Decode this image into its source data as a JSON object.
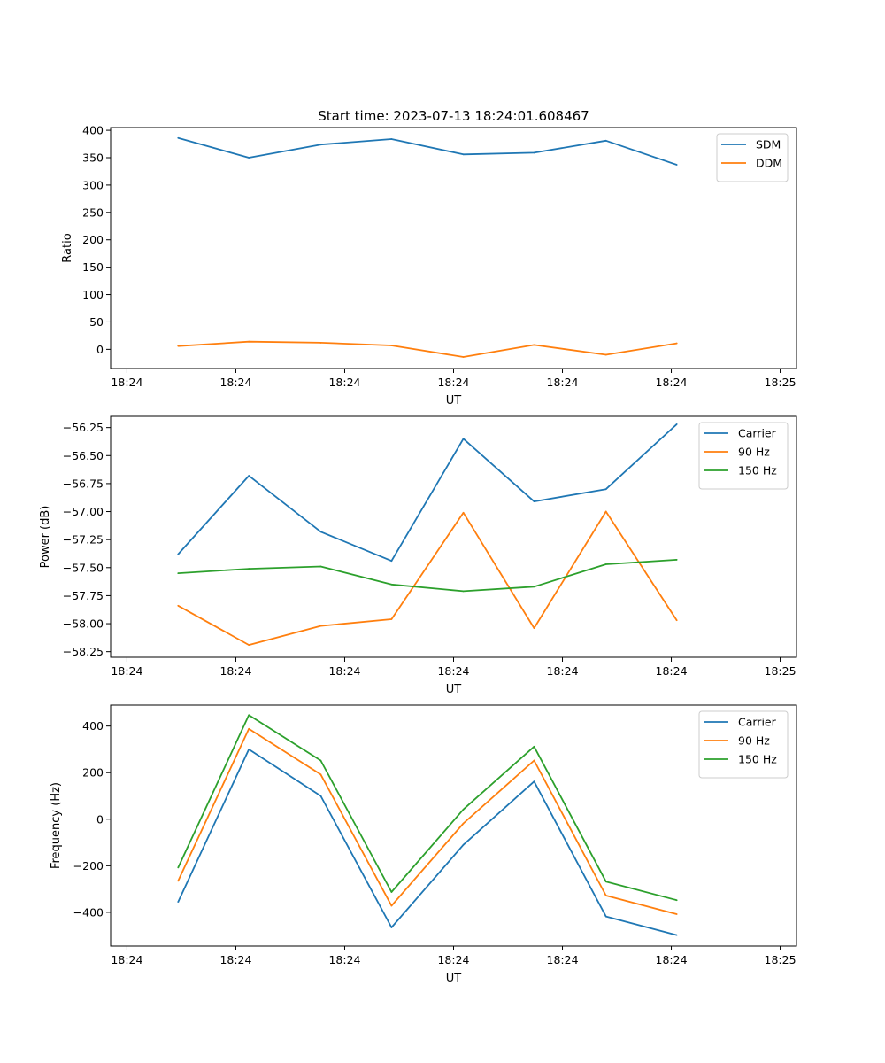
{
  "figure_title": "Start time: 2023-07-13 18:24:01.608467",
  "colors": {
    "c0": "#1f77b4",
    "c1": "#ff7f0e",
    "c2": "#2ca02c"
  },
  "chart_data": [
    {
      "type": "line",
      "title": "Start time: 2023-07-13 18:24:01.608467",
      "xlabel": "UT",
      "ylabel": "Ratio",
      "xticks": [
        0,
        1,
        2,
        3,
        4,
        5,
        6
      ],
      "xtick_labels": [
        "18:24",
        "18:24",
        "18:24",
        "18:24",
        "18:24",
        "18:24",
        "18:25"
      ],
      "xlim": [
        -0.15,
        6.15
      ],
      "x": [
        0.47,
        1.12,
        1.78,
        2.43,
        3.09,
        3.74,
        4.4,
        5.05
      ],
      "yticks": [
        0,
        50,
        100,
        150,
        200,
        250,
        300,
        350,
        400
      ],
      "ylim": [
        -35,
        405
      ],
      "legend_position": "top-right",
      "series": [
        {
          "name": "SDM",
          "color": "#1f77b4",
          "values": [
            386,
            350,
            374,
            384,
            356,
            359,
            381,
            337
          ]
        },
        {
          "name": "DDM",
          "color": "#ff7f0e",
          "values": [
            6,
            14,
            12,
            7,
            -14,
            8,
            -10,
            11
          ]
        }
      ]
    },
    {
      "type": "line",
      "title": "",
      "xlabel": "UT",
      "ylabel": "Power (dB)",
      "xticks": [
        0,
        1,
        2,
        3,
        4,
        5,
        6
      ],
      "xtick_labels": [
        "18:24",
        "18:24",
        "18:24",
        "18:24",
        "18:24",
        "18:24",
        "18:25"
      ],
      "xlim": [
        -0.15,
        6.15
      ],
      "x": [
        0.47,
        1.12,
        1.78,
        2.43,
        3.09,
        3.74,
        4.4,
        5.05
      ],
      "yticks": [
        -58.25,
        -58.0,
        -57.75,
        -57.5,
        -57.25,
        -57.0,
        -56.75,
        -56.5,
        -56.25
      ],
      "ytick_labels": [
        "−58.25",
        "−58.00",
        "−57.75",
        "−57.50",
        "−57.25",
        "−57.00",
        "−56.75",
        "−56.50",
        "−56.25"
      ],
      "ylim": [
        -58.3,
        -56.15
      ],
      "legend_position": "top-right",
      "series": [
        {
          "name": "Carrier",
          "color": "#1f77b4",
          "values": [
            -57.38,
            -56.68,
            -57.18,
            -57.44,
            -56.35,
            -56.91,
            -56.8,
            -56.22
          ]
        },
        {
          "name": "90 Hz",
          "color": "#ff7f0e",
          "values": [
            -57.84,
            -58.19,
            -58.02,
            -57.96,
            -57.01,
            -58.04,
            -57.0,
            -57.97
          ]
        },
        {
          "name": "150 Hz",
          "color": "#2ca02c",
          "values": [
            -57.55,
            -57.51,
            -57.49,
            -57.65,
            -57.71,
            -57.67,
            -57.47,
            -57.43
          ]
        }
      ]
    },
    {
      "type": "line",
      "title": "",
      "xlabel": "UT",
      "ylabel": "Frequency (Hz)",
      "xticks": [
        0,
        1,
        2,
        3,
        4,
        5,
        6
      ],
      "xtick_labels": [
        "18:24",
        "18:24",
        "18:24",
        "18:24",
        "18:24",
        "18:24",
        "18:25"
      ],
      "xlim": [
        -0.15,
        6.15
      ],
      "x": [
        0.47,
        1.12,
        1.78,
        2.43,
        3.09,
        3.74,
        4.4,
        5.05
      ],
      "yticks": [
        -400,
        -200,
        0,
        200,
        400
      ],
      "ytick_labels": [
        "−400",
        "−200",
        "0",
        "200",
        "400"
      ],
      "ylim": [
        -545,
        490
      ],
      "legend_position": "top-right",
      "series": [
        {
          "name": "Carrier",
          "color": "#1f77b4",
          "values": [
            -355,
            300,
            100,
            -465,
            -110,
            162,
            -418,
            -498
          ]
        },
        {
          "name": "90 Hz",
          "color": "#ff7f0e",
          "values": [
            -265,
            388,
            192,
            -372,
            -18,
            252,
            -328,
            -408
          ]
        },
        {
          "name": "150 Hz",
          "color": "#2ca02c",
          "values": [
            -208,
            447,
            252,
            -313,
            42,
            312,
            -268,
            -348
          ]
        }
      ]
    }
  ]
}
